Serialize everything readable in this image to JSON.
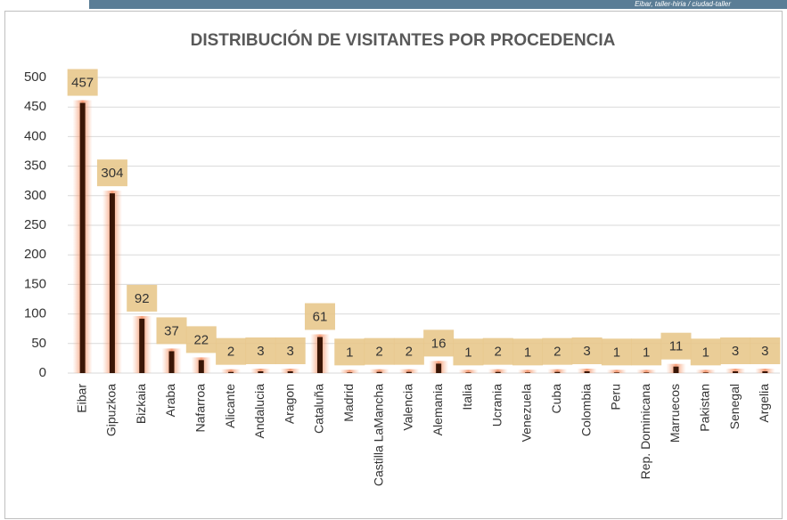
{
  "banner": "Eibar, taller-hiria / ciudad-taller",
  "chart_data": {
    "type": "bar",
    "title": "DISTRIBUCIÓN DE VISITANTES POR PROCEDENCIA",
    "categories": [
      "Eibar",
      "Gipuzkoa",
      "Bizkaia",
      "Araba",
      "Nafarroa",
      "Alicante",
      "Andalucia",
      "Aragon",
      "Cataluña",
      "Madrid",
      "Castilla LaMancha",
      "Valencia",
      "Alemania",
      "Italia",
      "Ucrania",
      "Venezuela",
      "Cuba",
      "Colombia",
      "Peru",
      "Rep. Dominicana",
      "Marruecos",
      "Pakistan",
      "Senegal",
      "Argelia"
    ],
    "values": [
      457,
      304,
      92,
      37,
      22,
      2,
      3,
      3,
      61,
      1,
      2,
      2,
      16,
      1,
      2,
      1,
      2,
      3,
      1,
      1,
      11,
      1,
      3,
      3
    ],
    "color": "#3a1606",
    "ylim": [
      0,
      500
    ],
    "yticks": [
      0,
      50,
      100,
      150,
      200,
      250,
      300,
      350,
      400,
      450,
      500
    ],
    "grid": true
  }
}
